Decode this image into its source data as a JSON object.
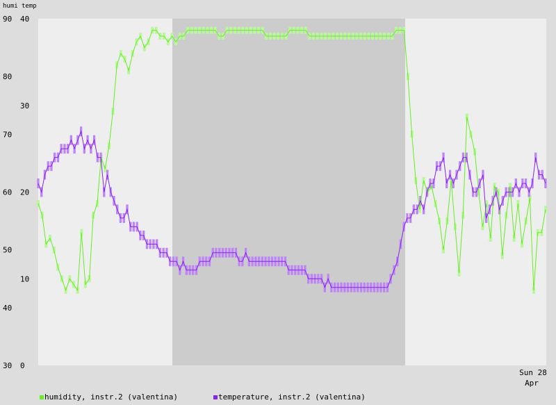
{
  "chart_data": {
    "type": "line",
    "header": {
      "humi_label": "humi",
      "temp_label": "temp"
    },
    "axes": {
      "humidity": {
        "ylim": [
          30,
          90
        ],
        "ticks": [
          "90",
          "80",
          "70",
          "60",
          "50",
          "40",
          "30"
        ]
      },
      "temperature": {
        "ylim": [
          0,
          40
        ],
        "ticks": [
          "40",
          "30",
          "20",
          "10",
          "0"
        ]
      },
      "x_tick": {
        "line1": "Sun 28",
        "line2": "Apr"
      }
    },
    "grid": false,
    "night_shading": true,
    "series": [
      {
        "name": "humidity, instr.2 (valentina)",
        "color": "#66ee22",
        "axis": "humidity",
        "values": [
          58,
          56,
          51,
          52,
          50,
          47,
          45,
          43,
          45,
          44,
          43,
          53,
          44,
          45,
          56,
          58,
          66,
          64,
          68,
          74,
          82,
          84,
          83,
          81,
          84,
          86,
          87,
          85,
          86,
          88,
          88,
          87,
          87,
          86,
          87,
          86,
          87,
          87,
          88,
          88,
          88,
          88,
          88,
          88,
          88,
          88,
          87,
          87,
          88,
          88,
          88,
          88,
          88,
          88,
          88,
          88,
          88,
          88,
          87,
          87,
          87,
          87,
          87,
          87,
          88,
          88,
          88,
          88,
          88,
          87,
          87,
          87,
          87,
          87,
          87,
          87,
          87,
          87,
          87,
          87,
          87,
          87,
          87,
          87,
          87,
          87,
          87,
          87,
          87,
          87,
          87,
          88,
          88,
          88,
          80,
          70,
          62,
          57,
          62,
          60,
          61,
          58,
          55,
          50,
          55,
          62,
          54,
          46,
          56,
          73,
          70,
          67,
          60,
          54,
          58,
          52,
          61,
          60,
          49,
          56,
          61,
          52,
          58,
          51,
          55,
          59,
          43,
          53,
          53,
          57
        ]
      },
      {
        "name": "temperature, instr.2 (valentina)",
        "color": "#8822ee",
        "axis": "temperature",
        "values": [
          21,
          20,
          22,
          23,
          23,
          24,
          24,
          25,
          25,
          25,
          26,
          25,
          26,
          27,
          25,
          26,
          25,
          26,
          24,
          24,
          20,
          22,
          20,
          19,
          18,
          17,
          17,
          18,
          16,
          16,
          16,
          15,
          15,
          14,
          14,
          14,
          14,
          13,
          13,
          13,
          12,
          12,
          12,
          11,
          12,
          11,
          11,
          11,
          11,
          12,
          12,
          12,
          12,
          13,
          13,
          13,
          13,
          13,
          13,
          13,
          13,
          12,
          12,
          13,
          12,
          12,
          12,
          12,
          12,
          12,
          12,
          12,
          12,
          12,
          12,
          12,
          11,
          11,
          11,
          11,
          11,
          11,
          10,
          10,
          10,
          10,
          10,
          9,
          10,
          9,
          9,
          9,
          9,
          9,
          9,
          9,
          9,
          9,
          9,
          9,
          9,
          9,
          9,
          9,
          9,
          9,
          9,
          10,
          11,
          12,
          14,
          16,
          17,
          17,
          18,
          18,
          19,
          18,
          20,
          21,
          21,
          23,
          23,
          24,
          21,
          22,
          21,
          22,
          23,
          24,
          24,
          22,
          20,
          20,
          21,
          22,
          17,
          18,
          19,
          20,
          18,
          19,
          20,
          20,
          20,
          21,
          20,
          21,
          21,
          20,
          21,
          24,
          22,
          22,
          21
        ]
      }
    ],
    "legend": [
      {
        "label": "humidity, instr.2 (valentina)",
        "color": "#66ee22"
      },
      {
        "label": "temperature, instr.2 (valentina)",
        "color": "#8822ee"
      }
    ]
  }
}
